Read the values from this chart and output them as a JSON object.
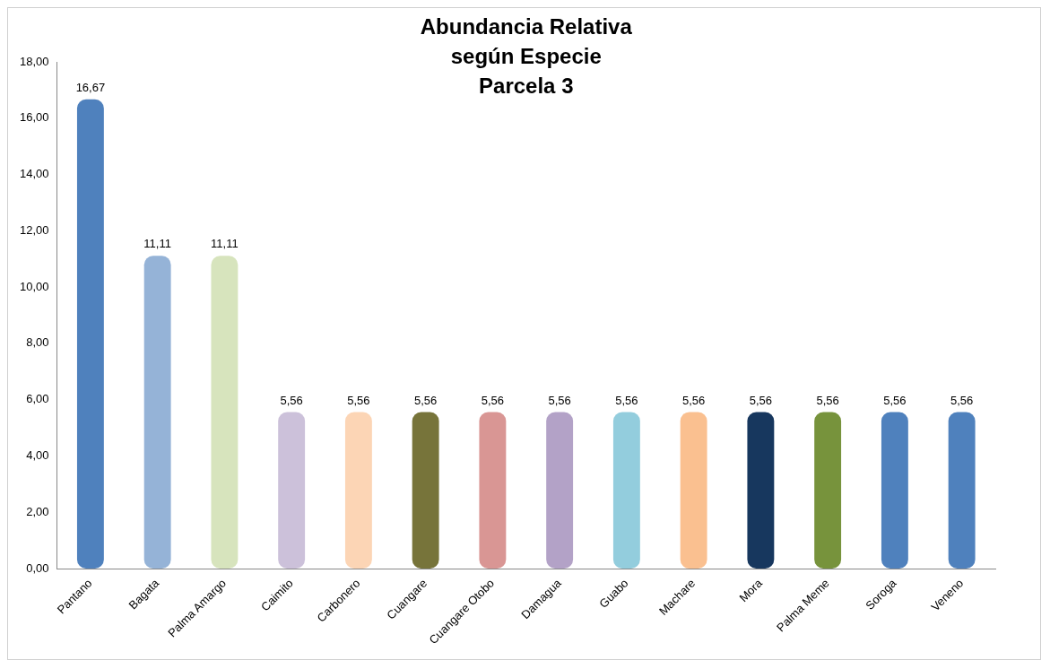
{
  "chart_data": {
    "type": "bar",
    "title": "Abundancia Relativa\nsegún Especie\nParcela 3",
    "categories": [
      "Pantano",
      "Bagata",
      "Palma Amargo",
      "Caimito",
      "Carbonero",
      "Cuangare",
      "Cuangare Otobo",
      "Damagua",
      "Guabo",
      "Machare",
      "Mora",
      "Palma Meme",
      "Soroga",
      "Veneno"
    ],
    "values": [
      16.67,
      11.11,
      11.11,
      5.56,
      5.56,
      5.56,
      5.56,
      5.56,
      5.56,
      5.56,
      5.56,
      5.56,
      5.56,
      5.56
    ],
    "value_labels": [
      "16,67",
      "11,11",
      "11,11",
      "5,56",
      "5,56",
      "5,56",
      "5,56",
      "5,56",
      "5,56",
      "5,56",
      "5,56",
      "5,56",
      "5,56",
      "5,56"
    ],
    "colors": [
      "#4f81bd",
      "#95b3d7",
      "#d7e4bd",
      "#ccc1da",
      "#fcd5b5",
      "#77743a",
      "#d99694",
      "#b3a2c7",
      "#93cddd",
      "#fac090",
      "#17375e",
      "#77933c",
      "#4f81bd",
      "#4f81bd"
    ],
    "ylim": [
      0,
      18
    ],
    "yticks": [
      {
        "value": 0,
        "label": "0,00"
      },
      {
        "value": 2,
        "label": "2,00"
      },
      {
        "value": 4,
        "label": "4,00"
      },
      {
        "value": 6,
        "label": "6,00"
      },
      {
        "value": 8,
        "label": "8,00"
      },
      {
        "value": 10,
        "label": "10,00"
      },
      {
        "value": 12,
        "label": "12,00"
      },
      {
        "value": 14,
        "label": "14,00"
      },
      {
        "value": 16,
        "label": "16,00"
      },
      {
        "value": 18,
        "label": "18,00"
      }
    ],
    "grid": false,
    "legend": false
  }
}
